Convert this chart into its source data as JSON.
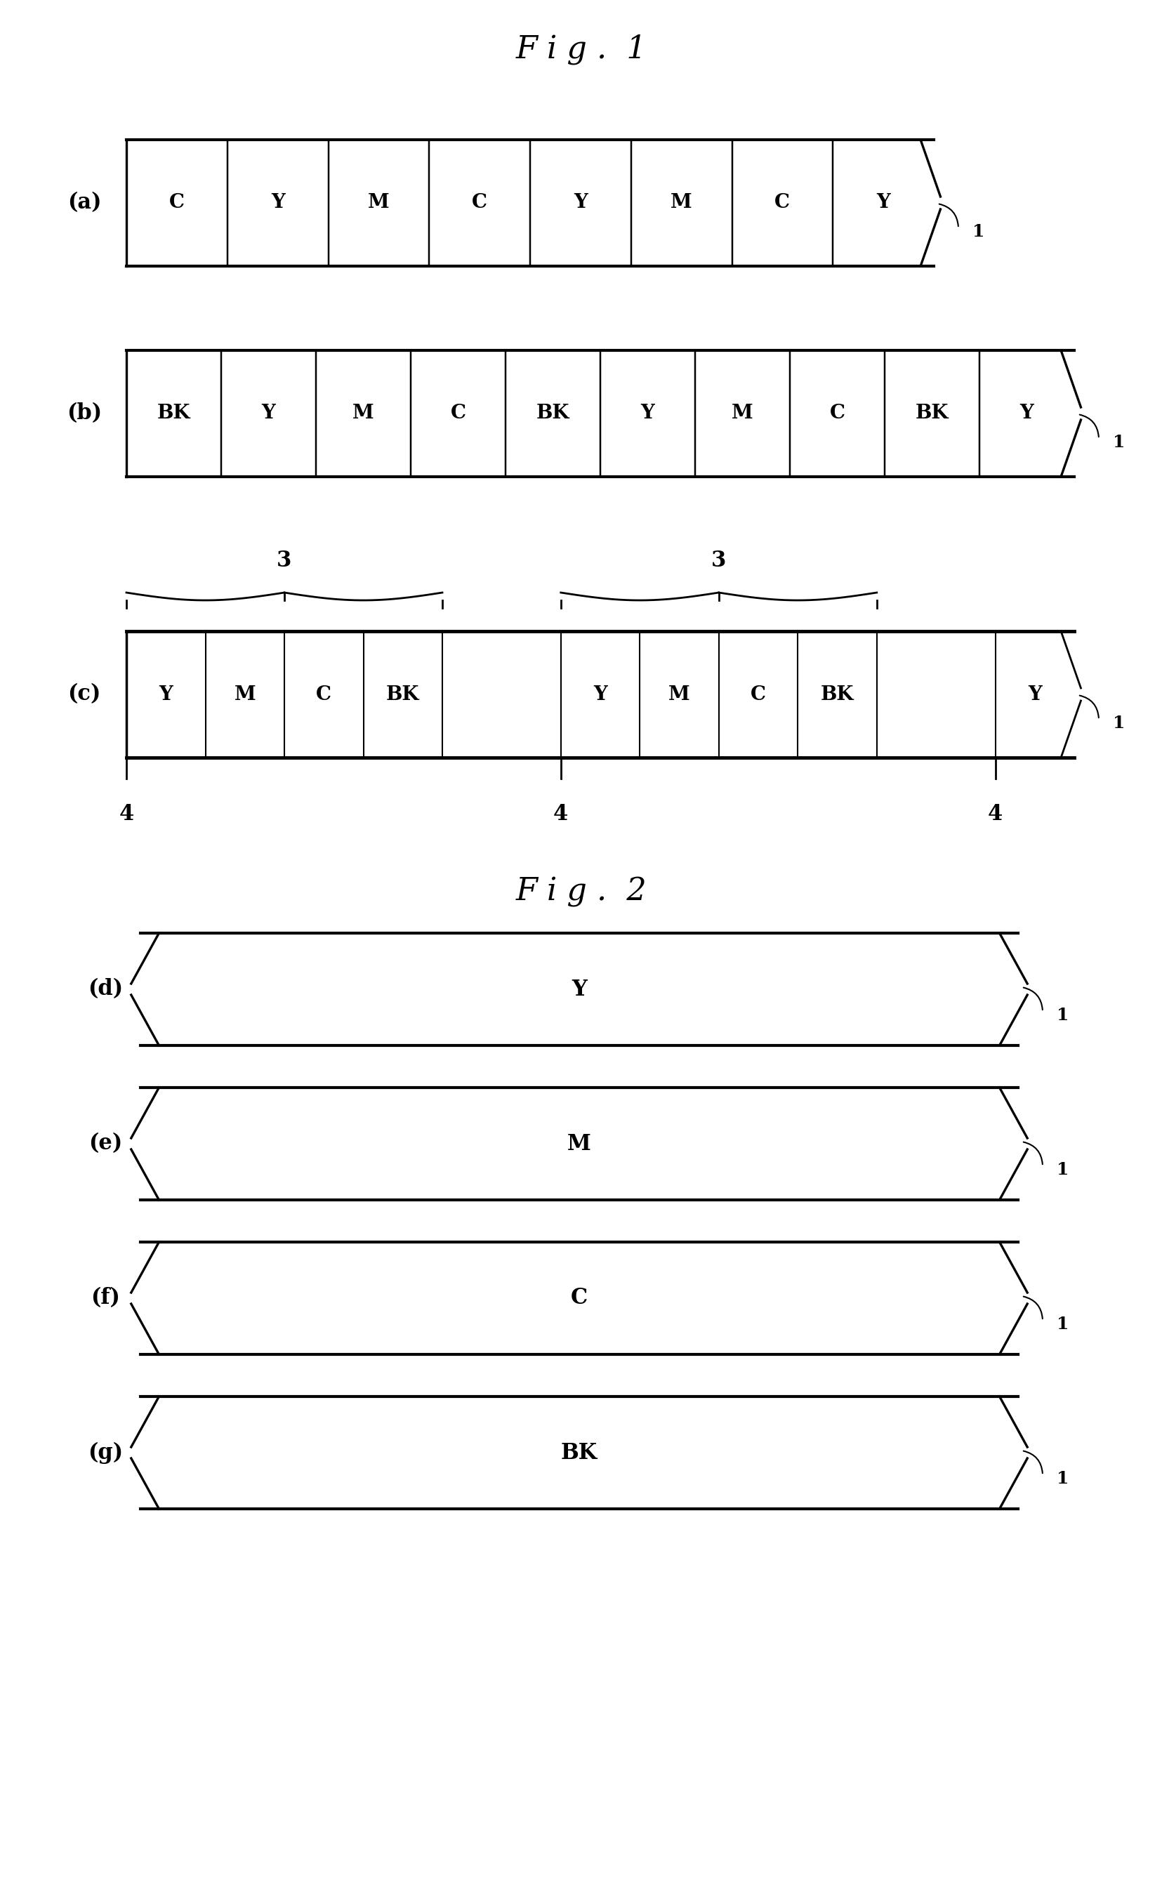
{
  "fig1_title": "F i g .  1",
  "fig2_title": "F i g .  2",
  "panel_a_label": "(a)",
  "panel_b_label": "(b)",
  "panel_c_label": "(c)",
  "panel_d_label": "(d)",
  "panel_e_label": "(e)",
  "panel_f_label": "(f)",
  "panel_g_label": "(g)",
  "panel_a_cells": [
    "C",
    "Y",
    "M",
    "C",
    "Y",
    "M",
    "C",
    "Y"
  ],
  "panel_b_cells": [
    "BK",
    "Y",
    "M",
    "C",
    "BK",
    "Y",
    "M",
    "C",
    "BK",
    "Y"
  ],
  "panel_c_cells": [
    "Y",
    "M",
    "C",
    "BK",
    "",
    "Y",
    "M",
    "C",
    "BK",
    "",
    "Y"
  ],
  "panel_d_label_text": "Y",
  "panel_e_label_text": "M",
  "panel_f_label_text": "C",
  "panel_g_label_text": "BK",
  "ref_label": "1",
  "bracket_label": "3",
  "tick_label": "4",
  "bg_color": "#ffffff",
  "line_color": "#000000",
  "font_size_title": 32,
  "font_size_panel": 22,
  "font_size_cell": 20,
  "font_size_ref": 18,
  "font_size_bracket": 22
}
